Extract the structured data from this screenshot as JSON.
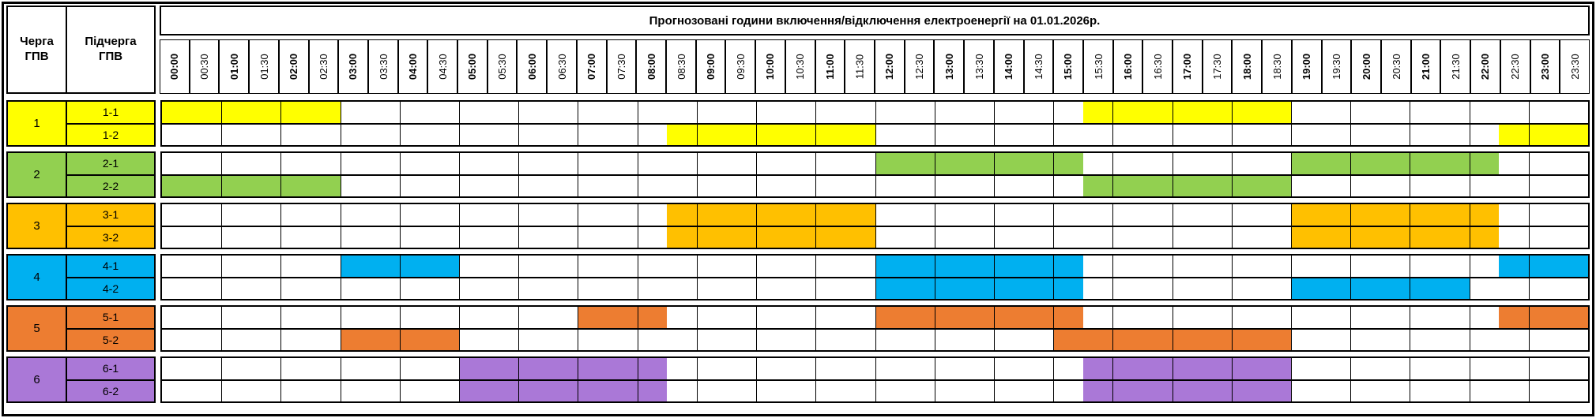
{
  "header": {
    "queue_col": "Черга ГПВ",
    "subqueue_col": "Підчерга ГПВ",
    "title": "Прогнозовані години включення/відключення електроенергії на 01.01.2026р."
  },
  "time_columns": [
    "00:00",
    "00:30",
    "01:00",
    "01:30",
    "02:00",
    "02:30",
    "03:00",
    "03:30",
    "04:00",
    "04:30",
    "05:00",
    "05:30",
    "06:00",
    "06:30",
    "07:00",
    "07:30",
    "08:00",
    "08:30",
    "09:00",
    "09:30",
    "10:00",
    "10:30",
    "11:00",
    "11:30",
    "12:00",
    "12:30",
    "13:00",
    "13:30",
    "14:00",
    "14:30",
    "15:00",
    "15:30",
    "16:00",
    "16:30",
    "17:00",
    "17:30",
    "18:00",
    "18:30",
    "19:00",
    "19:30",
    "20:00",
    "20:30",
    "21:00",
    "21:30",
    "22:00",
    "22:30",
    "23:00",
    "23:30"
  ],
  "queues": [
    {
      "number": "1",
      "color": "#FFFF00",
      "rows": [
        {
          "label": "1-1",
          "marked_ranges": [
            {
              "slots": [
                0,
                6
              ],
              "time": "00:00–03:00"
            },
            {
              "slots": [
                31,
                38
              ],
              "time": "15:30–19:00"
            }
          ]
        },
        {
          "label": "1-2",
          "marked_ranges": [
            {
              "slots": [
                17,
                24
              ],
              "time": "08:30–12:00"
            },
            {
              "slots": [
                45,
                48
              ],
              "time": "22:30–24:00"
            }
          ]
        }
      ]
    },
    {
      "number": "2",
      "color": "#92D050",
      "rows": [
        {
          "label": "2-1",
          "marked_ranges": [
            {
              "slots": [
                24,
                31
              ],
              "time": "12:00–15:30"
            },
            {
              "slots": [
                38,
                45
              ],
              "time": "19:00–22:30"
            }
          ]
        },
        {
          "label": "2-2",
          "marked_ranges": [
            {
              "slots": [
                0,
                6
              ],
              "time": "00:00–03:00"
            },
            {
              "slots": [
                31,
                38
              ],
              "time": "15:30–19:00"
            }
          ]
        }
      ]
    },
    {
      "number": "3",
      "color": "#FFC000",
      "rows": [
        {
          "label": "3-1",
          "marked_ranges": [
            {
              "slots": [
                17,
                24
              ],
              "time": "08:30–12:00"
            },
            {
              "slots": [
                38,
                45
              ],
              "time": "19:00–22:30"
            }
          ]
        },
        {
          "label": "3-2",
          "marked_ranges": [
            {
              "slots": [
                17,
                24
              ],
              "time": "08:30–12:00"
            },
            {
              "slots": [
                38,
                45
              ],
              "time": "19:00–22:30"
            }
          ]
        }
      ]
    },
    {
      "number": "4",
      "color": "#00B0F0",
      "rows": [
        {
          "label": "4-1",
          "marked_ranges": [
            {
              "slots": [
                6,
                10
              ],
              "time": "03:00–05:00"
            },
            {
              "slots": [
                24,
                31
              ],
              "time": "12:00–15:30"
            },
            {
              "slots": [
                45,
                48
              ],
              "time": "22:30–24:00"
            }
          ]
        },
        {
          "label": "4-2",
          "marked_ranges": [
            {
              "slots": [
                24,
                31
              ],
              "time": "12:00–15:30"
            },
            {
              "slots": [
                38,
                44
              ],
              "time": "19:00–22:00"
            }
          ]
        }
      ]
    },
    {
      "number": "5",
      "color": "#ED7D31",
      "rows": [
        {
          "label": "5-1",
          "marked_ranges": [
            {
              "slots": [
                14,
                17
              ],
              "time": "07:00–08:30"
            },
            {
              "slots": [
                24,
                31
              ],
              "time": "12:00–15:30"
            },
            {
              "slots": [
                45,
                48
              ],
              "time": "22:30–24:00"
            }
          ]
        },
        {
          "label": "5-2",
          "marked_ranges": [
            {
              "slots": [
                6,
                10
              ],
              "time": "03:00–05:00"
            },
            {
              "slots": [
                30,
                38
              ],
              "time": "15:00–19:00"
            }
          ]
        }
      ]
    },
    {
      "number": "6",
      "color": "#AA78D7",
      "rows": [
        {
          "label": "6-1",
          "marked_ranges": [
            {
              "slots": [
                10,
                17
              ],
              "time": "05:00–08:30"
            },
            {
              "slots": [
                31,
                38
              ],
              "time": "15:30–19:00"
            }
          ]
        },
        {
          "label": "6-2",
          "marked_ranges": [
            {
              "slots": [
                10,
                17
              ],
              "time": "05:00–08:30"
            },
            {
              "slots": [
                31,
                38
              ],
              "time": "15:30–19:00"
            }
          ]
        }
      ]
    }
  ]
}
